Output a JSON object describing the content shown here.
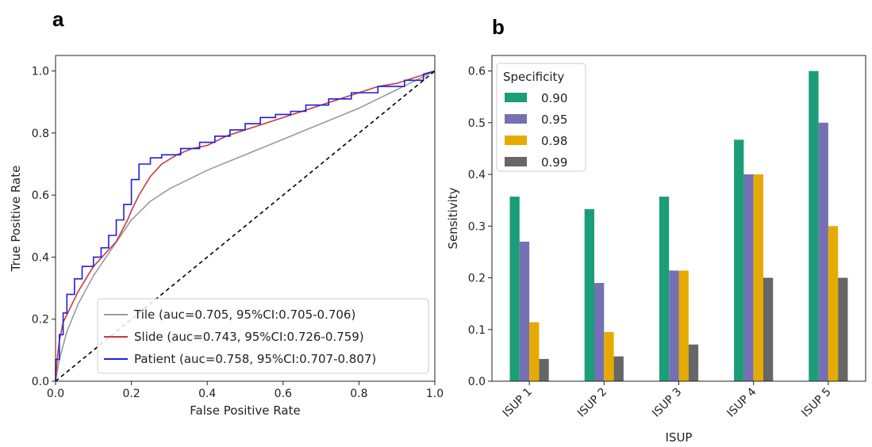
{
  "panels": {
    "a": "a",
    "b": "b"
  },
  "chart_data": [
    {
      "type": "line",
      "xlabel": "False Positive Rate",
      "ylabel": "True Positive Rate",
      "xlim": [
        0,
        1.0
      ],
      "ylim": [
        0,
        1.05
      ],
      "xticks": [
        "0.0",
        "0.2",
        "0.4",
        "0.6",
        "0.8",
        "1.0"
      ],
      "yticks": [
        "0.0",
        "0.2",
        "0.4",
        "0.6",
        "0.8",
        "1.0"
      ],
      "grid": false,
      "legend_position": "bottom-right",
      "series": [
        {
          "name": "Tile (auc=0.705, 95%CI:0.705-0.706)",
          "color": "#9a9a9a",
          "x": [
            0,
            0.01,
            0.03,
            0.06,
            0.1,
            0.15,
            0.2,
            0.25,
            0.3,
            0.4,
            0.5,
            0.6,
            0.7,
            0.8,
            0.9,
            1.0
          ],
          "y": [
            0,
            0.07,
            0.16,
            0.25,
            0.34,
            0.43,
            0.52,
            0.58,
            0.62,
            0.68,
            0.73,
            0.78,
            0.83,
            0.88,
            0.94,
            1.0
          ]
        },
        {
          "name": "Slide (auc=0.743, 95%CI:0.726-0.759)",
          "color": "#c83a3a",
          "x": [
            0,
            0.005,
            0.01,
            0.02,
            0.04,
            0.06,
            0.08,
            0.1,
            0.13,
            0.16,
            0.19,
            0.2,
            0.22,
            0.25,
            0.28,
            0.32,
            0.36,
            0.4,
            0.45,
            0.5,
            0.55,
            0.6,
            0.65,
            0.7,
            0.75,
            0.8,
            0.85,
            0.9,
            0.95,
            1.0
          ],
          "y": [
            0,
            0.08,
            0.13,
            0.19,
            0.24,
            0.29,
            0.33,
            0.37,
            0.41,
            0.45,
            0.52,
            0.55,
            0.6,
            0.66,
            0.7,
            0.73,
            0.75,
            0.76,
            0.79,
            0.81,
            0.83,
            0.85,
            0.87,
            0.89,
            0.91,
            0.93,
            0.95,
            0.96,
            0.98,
            1.0
          ]
        },
        {
          "name": "Patient (auc=0.758, 95%CI:0.707-0.807)",
          "color": "#1f1fe0",
          "x": [
            0,
            0,
            0.01,
            0.01,
            0.02,
            0.02,
            0.03,
            0.03,
            0.05,
            0.05,
            0.07,
            0.07,
            0.1,
            0.1,
            0.12,
            0.12,
            0.14,
            0.14,
            0.16,
            0.16,
            0.18,
            0.18,
            0.2,
            0.2,
            0.22,
            0.22,
            0.25,
            0.25,
            0.28,
            0.28,
            0.33,
            0.33,
            0.38,
            0.38,
            0.42,
            0.42,
            0.46,
            0.46,
            0.5,
            0.5,
            0.54,
            0.54,
            0.58,
            0.58,
            0.62,
            0.62,
            0.66,
            0.66,
            0.72,
            0.72,
            0.78,
            0.78,
            0.85,
            0.85,
            0.92,
            0.92,
            0.97,
            0.97,
            1.0
          ],
          "y": [
            0,
            0.07,
            0.07,
            0.15,
            0.15,
            0.22,
            0.22,
            0.28,
            0.28,
            0.33,
            0.33,
            0.37,
            0.37,
            0.4,
            0.4,
            0.43,
            0.43,
            0.47,
            0.47,
            0.52,
            0.52,
            0.57,
            0.57,
            0.65,
            0.65,
            0.7,
            0.7,
            0.72,
            0.72,
            0.73,
            0.73,
            0.75,
            0.75,
            0.77,
            0.77,
            0.79,
            0.79,
            0.81,
            0.81,
            0.83,
            0.83,
            0.85,
            0.85,
            0.86,
            0.86,
            0.87,
            0.87,
            0.89,
            0.89,
            0.91,
            0.91,
            0.93,
            0.93,
            0.95,
            0.95,
            0.97,
            0.97,
            0.99,
            1.0
          ]
        },
        {
          "name": "",
          "color": "#000000",
          "dashed": true,
          "x": [
            0,
            1.0
          ],
          "y": [
            0,
            1.0
          ]
        }
      ]
    },
    {
      "type": "bar",
      "xlabel": "ISUP",
      "ylabel": "Sensitivity",
      "ylim": [
        0,
        0.63
      ],
      "yticks": [
        "0.0",
        "0.1",
        "0.2",
        "0.3",
        "0.4",
        "0.5",
        "0.6"
      ],
      "grid": false,
      "legend_title": "Specificity",
      "legend_position": "top-left",
      "categories": [
        "ISUP 1",
        "ISUP 2",
        "ISUP 3",
        "ISUP 4",
        "ISUP 5"
      ],
      "series": [
        {
          "name": "0.90",
          "color": "#1b9e77",
          "values": [
            0.357,
            0.333,
            0.357,
            0.467,
            0.6
          ]
        },
        {
          "name": "0.95",
          "color": "#7570b3",
          "values": [
            0.27,
            0.19,
            0.214,
            0.4,
            0.5
          ]
        },
        {
          "name": "0.98",
          "color": "#e6ab02",
          "values": [
            0.114,
            0.095,
            0.214,
            0.4,
            0.3
          ]
        },
        {
          "name": "0.99",
          "color": "#666666",
          "values": [
            0.043,
            0.048,
            0.071,
            0.2,
            0.2
          ]
        }
      ]
    }
  ]
}
